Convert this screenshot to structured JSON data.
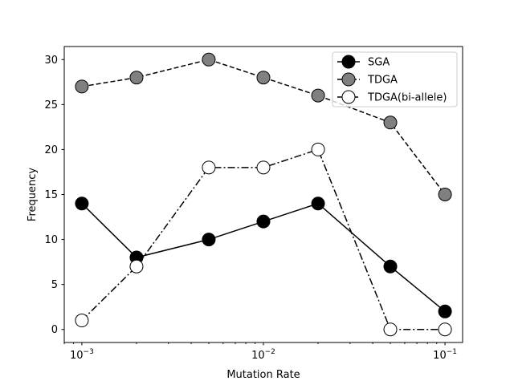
{
  "chart_data": {
    "type": "line",
    "title": "",
    "xlabel": "Mutation Rate",
    "ylabel": "Frequency",
    "xscale": "log",
    "xlim": [
      0.0008,
      0.125
    ],
    "ylim": [
      -1.45,
      31.45
    ],
    "x": [
      0.001,
      0.002,
      0.005,
      0.01,
      0.02,
      0.05,
      0.1
    ],
    "x_ticks": [
      {
        "value": 0.001,
        "base": "10",
        "exp": "−3"
      },
      {
        "value": 0.01,
        "base": "10",
        "exp": "−2"
      },
      {
        "value": 0.1,
        "base": "10",
        "exp": "−1"
      }
    ],
    "y_ticks": [
      0,
      5,
      10,
      15,
      20,
      25,
      30
    ],
    "grid": false,
    "legend": "top-right",
    "series": [
      {
        "name": "SGA",
        "values": [
          14,
          8,
          10,
          12,
          14,
          7,
          2
        ],
        "color": "#000000",
        "marker_fill": "#000000",
        "linestyle": "solid"
      },
      {
        "name": "TDGA",
        "values": [
          27,
          28,
          30,
          28,
          26,
          23,
          15
        ],
        "color": "#000000",
        "marker_fill": "#808080",
        "linestyle": "dashed"
      },
      {
        "name": "TDGA(bi-allele)",
        "values": [
          1,
          7,
          18,
          18,
          20,
          0,
          0
        ],
        "color": "#000000",
        "marker_fill": "#ffffff",
        "linestyle": "dashdot"
      }
    ]
  }
}
